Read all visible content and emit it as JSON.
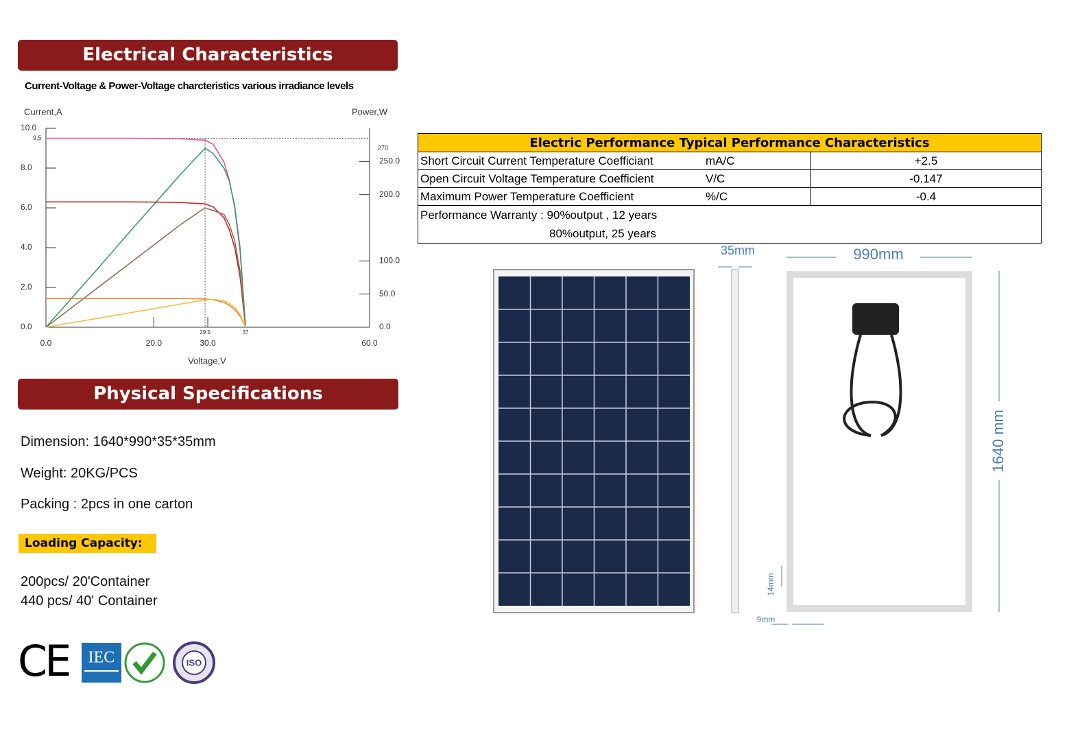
{
  "sections": {
    "electrical": "Electrical Characteristics",
    "physical": "Physical Specifications"
  },
  "chart_data": {
    "type": "line",
    "title": "Current-Voltage & Power-Voltage charcteristics various irradiance levels",
    "y_label": "Current,A",
    "y2_label": "Power,W",
    "x_label": "Voltage,V",
    "x": [
      0,
      5,
      10,
      15,
      20,
      25,
      29.5,
      31,
      33,
      34,
      35,
      36,
      37
    ],
    "xlim": [
      0,
      60
    ],
    "xticks": [
      {
        "value": 0,
        "label": "0.0"
      },
      {
        "value": 20,
        "label": "20.0"
      },
      {
        "value": 30,
        "label": "30.0"
      },
      {
        "value": 60,
        "label": "60.0"
      }
    ],
    "ylim": [
      0,
      10
    ],
    "yticks": [
      {
        "value": 0,
        "label": "0.0"
      },
      {
        "value": 2,
        "label": "2.0"
      },
      {
        "value": 4,
        "label": "4.0"
      },
      {
        "value": 6,
        "label": "6.0"
      },
      {
        "value": 8,
        "label": "8.0"
      },
      {
        "value": 10,
        "label": "10.0"
      }
    ],
    "y2lim": [
      0,
      300
    ],
    "y2ticks": [
      {
        "value": 0,
        "label": "0.0"
      },
      {
        "value": 50,
        "label": "50.0"
      },
      {
        "value": 100,
        "label": "100.0"
      },
      {
        "value": 200,
        "label": "200.0"
      },
      {
        "value": 250,
        "label": "250.0"
      }
    ],
    "annotations": {
      "y": [
        {
          "value": 9.5,
          "label": "9,5"
        }
      ],
      "y2": [
        270
      ],
      "x": [
        29.5,
        37
      ]
    },
    "grid": false,
    "series": [
      {
        "color": "#d9559f",
        "values": [
          9.5,
          9.5,
          9.5,
          9.5,
          9.49,
          9.47,
          9.4,
          9.2,
          8.3,
          7.4,
          6.0,
          3.8,
          0
        ]
      },
      {
        "color": "#3a9a7a",
        "axis": "y2",
        "values": [
          0,
          46,
          92,
          139,
          185,
          231,
          270,
          262,
          240,
          220,
          183,
          119,
          0
        ]
      },
      {
        "color": "#c8282c",
        "values": [
          6.3,
          6.3,
          6.3,
          6.3,
          6.29,
          6.27,
          6.2,
          6.05,
          5.5,
          4.9,
          4.0,
          2.5,
          0
        ]
      },
      {
        "color": "#9a6b4d",
        "axis": "y2",
        "values": [
          0,
          31,
          62,
          93,
          124,
          155,
          180,
          176,
          170,
          155,
          130,
          84,
          0
        ]
      },
      {
        "color": "#e8822a",
        "values": [
          1.45,
          1.45,
          1.45,
          1.45,
          1.45,
          1.44,
          1.42,
          1.38,
          1.25,
          1.1,
          0.9,
          0.55,
          0
        ]
      },
      {
        "color": "#f0c040",
        "axis": "y2",
        "values": [
          0,
          7,
          14,
          21,
          28,
          35,
          41,
          42,
          40,
          36,
          30,
          19,
          0
        ]
      }
    ]
  },
  "physical": {
    "dimension": "Dimension:  1640*990*35*35mm",
    "weight": "Weight: 20KG/PCS",
    "packing": "Packing : 2pcs in one carton",
    "loading_title": "Loading Capacity:",
    "loading": [
      "200pcs/ 20'Container",
      "440 pcs/ 40' Container"
    ]
  },
  "logos": {
    "ce": "CE",
    "iec": "IEC",
    "iso": "ISO"
  },
  "table": {
    "title": "Electric Performance Typical Performance Characteristics",
    "rows": [
      [
        "Short Circuit Current Temperature Coefficiant",
        "mA/C",
        "+2.5"
      ],
      [
        "Open Circuit Voltage Temperature Coefficient",
        "V/C",
        "-0.147"
      ],
      [
        "Maximum Power Temperature Coefficient",
        "%/C",
        "-0.4"
      ]
    ],
    "warranty": [
      "Performance Warranty :  90%output ,  12 years",
      "80%output,   25 years"
    ]
  },
  "drawing": {
    "thickness": "35mm",
    "width": "990mm",
    "height": "1640 mm",
    "frame": "14mm",
    "edge": "9mm"
  }
}
